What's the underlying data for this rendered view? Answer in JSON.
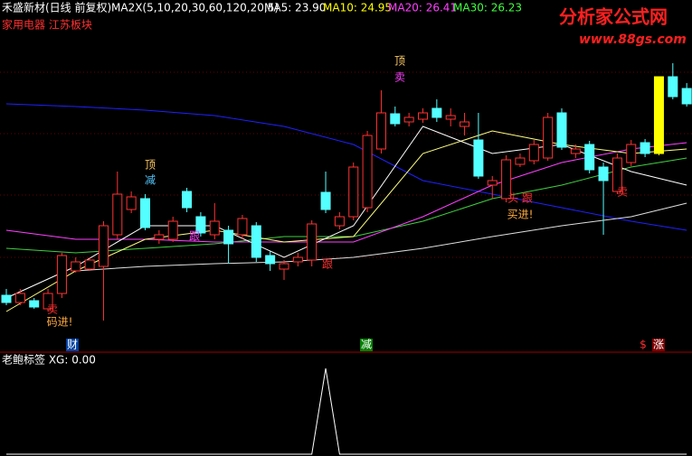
{
  "header": {
    "stock": "禾盛新材(日线 前复权)",
    "ma_setting": "MA2X(5,10,20,30,60,120,20,5)",
    "ma5": "MA5: 23.90",
    "ma10": "MA10: 24.95",
    "ma20": "MA20: 26.41",
    "ma30": "MA30: 26.23",
    "sector": "家用电器 江苏板块",
    "watermark": "分析家公式网",
    "watermark_url": "www.88gs.com"
  },
  "annotations": [
    "顶",
    "减",
    "顶",
    "卖",
    "跟",
    "跟",
    "卖",
    "码进!",
    "头 跟",
    "买进!",
    "卖"
  ],
  "signals": [
    "财",
    "减",
    "$",
    "涨"
  ],
  "chart_data": [
    {
      "type": "candlestick",
      "ylim": [
        16.5,
        36
      ],
      "up_color": "#ff3232",
      "down_color": "#54ffff",
      "highlight_color": "#ffff00",
      "highlight": [
        47
      ],
      "open": [
        19.65,
        19.25,
        19.35,
        18.9,
        19.75,
        21.0,
        21.1,
        21.25,
        23.0,
        24.4,
        25.0,
        22.75,
        22.75,
        25.4,
        24.0,
        23.0,
        23.25,
        23.0,
        23.5,
        21.85,
        21.1,
        21.5,
        21.6,
        25.35,
        23.5,
        24.0,
        24.5,
        27.75,
        29.7,
        29.25,
        29.4,
        30.0,
        29.4,
        29.0,
        28.25,
        25.75,
        25.0,
        26.9,
        27.1,
        27.25,
        29.75,
        27.5,
        28.0,
        26.75,
        25.4,
        27.0,
        28.1,
        27.5,
        31.75,
        31.1
      ],
      "high": [
        20.0,
        20.0,
        19.5,
        20.0,
        22.0,
        21.75,
        21.75,
        23.75,
        26.5,
        25.4,
        25.25,
        23.25,
        24.0,
        25.6,
        24.25,
        24.75,
        23.5,
        24.1,
        23.7,
        22.1,
        21.6,
        22.0,
        23.8,
        26.5,
        24.25,
        27.0,
        28.75,
        31.0,
        30.1,
        29.75,
        30.0,
        30.5,
        30.0,
        29.75,
        29.75,
        26.25,
        27.4,
        27.5,
        28.25,
        29.75,
        30.0,
        28.0,
        28.2,
        27.0,
        27.5,
        28.25,
        28.3,
        31.75,
        32.5,
        31.4
      ],
      "low": [
        19.1,
        19.1,
        18.9,
        18.75,
        19.5,
        20.9,
        21.0,
        18.25,
        22.75,
        24.2,
        23.25,
        22.5,
        22.6,
        24.25,
        22.9,
        22.75,
        21.4,
        22.75,
        21.5,
        21.0,
        20.5,
        21.25,
        21.25,
        24.2,
        23.3,
        23.8,
        24.25,
        27.5,
        29.0,
        29.0,
        29.2,
        29.25,
        29.0,
        28.5,
        26.1,
        25.0,
        24.8,
        26.75,
        26.9,
        27.1,
        27.7,
        27.25,
        26.4,
        23.0,
        25.25,
        26.8,
        27.3,
        27.4,
        30.5,
        30.1
      ],
      "close": [
        19.25,
        19.75,
        19.0,
        19.75,
        21.85,
        21.5,
        21.6,
        23.5,
        25.25,
        25.1,
        23.4,
        23.0,
        23.75,
        24.5,
        23.1,
        23.75,
        22.5,
        23.9,
        21.75,
        21.4,
        21.4,
        21.75,
        23.6,
        24.4,
        24.0,
        26.75,
        28.5,
        29.75,
        29.15,
        29.5,
        29.75,
        29.5,
        29.6,
        29.25,
        26.25,
        26.0,
        27.15,
        27.25,
        28.0,
        29.5,
        27.85,
        27.75,
        26.6,
        26.0,
        27.25,
        28.0,
        27.5,
        31.75,
        30.65,
        30.25
      ],
      "series": [
        {
          "color": "#2020ff",
          "x": [
            0,
            5,
            10,
            15,
            20,
            25,
            30,
            35,
            40,
            45,
            49
          ],
          "values": [
            30.25,
            30.1,
            29.9,
            29.6,
            29.0,
            28.0,
            26.0,
            25.25,
            24.5,
            23.75,
            23.25
          ]
        },
        {
          "color": "#e0e0e0",
          "x": [
            0,
            5,
            10,
            15,
            20,
            25,
            30,
            35,
            40,
            45,
            49
          ],
          "values": [
            null,
            21.0,
            21.25,
            21.4,
            21.5,
            21.75,
            22.25,
            22.9,
            23.5,
            24.0,
            24.75
          ]
        },
        {
          "color": "#40d040",
          "x": [
            0,
            5,
            10,
            15,
            20,
            25,
            30,
            35,
            40,
            45,
            49
          ],
          "values": [
            22.25,
            22.0,
            22.25,
            22.5,
            22.9,
            22.9,
            23.75,
            25.0,
            25.75,
            26.75,
            27.25
          ]
        },
        {
          "color": "#ff40ff",
          "x": [
            0,
            5,
            10,
            15,
            20,
            25,
            30,
            35,
            40,
            45,
            49
          ],
          "values": [
            23.25,
            22.75,
            22.75,
            22.6,
            22.6,
            22.6,
            24.0,
            25.75,
            27.0,
            27.75,
            28.1
          ]
        },
        {
          "color": "#ffff80",
          "x": [
            0,
            5,
            10,
            15,
            20,
            25,
            30,
            35,
            40,
            45,
            49
          ],
          "values": [
            18.75,
            21.0,
            22.75,
            23.25,
            22.6,
            22.9,
            27.5,
            28.75,
            28.0,
            27.5,
            27.75
          ]
        },
        {
          "color": "#ffffff",
          "x": [
            0,
            5,
            10,
            15,
            20,
            25,
            30,
            35,
            40,
            45,
            49
          ],
          "values": [
            19.5,
            21.25,
            23.5,
            23.5,
            21.75,
            23.5,
            29.0,
            27.5,
            28.0,
            26.5,
            25.75
          ]
        }
      ]
    },
    {
      "type": "line",
      "title": "老鲍标签 XG: 0.00",
      "color": "#ffffff",
      "ylim": [
        0,
        1
      ],
      "values": [
        0,
        0,
        0,
        0,
        0,
        0,
        0,
        0,
        0,
        0,
        0,
        0,
        0,
        0,
        0,
        0,
        0,
        0,
        0,
        0,
        0,
        0,
        0,
        1,
        0,
        0,
        0,
        0,
        0,
        0,
        0,
        0,
        0,
        0,
        0,
        0,
        0,
        0,
        0,
        0,
        0,
        0,
        0,
        0,
        0,
        0,
        0,
        0,
        0,
        0
      ]
    }
  ]
}
